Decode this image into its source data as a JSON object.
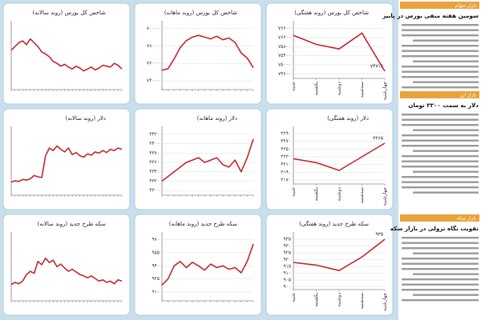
{
  "chart_data": [
    {
      "type": "line",
      "title": "شاخص کل بورس (روند سالانه)",
      "color": "#c0272d",
      "values": [
        62,
        66,
        70,
        72,
        68,
        74,
        70,
        66,
        60,
        58,
        55,
        50,
        48,
        45,
        47,
        44,
        42,
        45,
        43,
        40,
        42,
        44,
        41,
        43,
        46,
        45,
        44,
        48,
        46,
        42
      ],
      "ylim": [
        20,
        90
      ]
    },
    {
      "type": "line",
      "title": "شاخص کل بورس (روند ماهانه)",
      "color": "#c0272d",
      "values": [
        75200,
        75400,
        76500,
        77800,
        78600,
        79000,
        79200,
        79000,
        78800,
        79100,
        78700,
        78900,
        78400,
        77200,
        76600,
        75500
      ],
      "ylim": [
        73000,
        80500
      ],
      "yticks": [
        {
          "value": 74000,
          "label": "۷۴۰۰۰"
        },
        {
          "value": 76000,
          "label": "۷۶۰۰۰"
        },
        {
          "value": 78000,
          "label": "۷۸۰۰۰"
        },
        {
          "value": 80000,
          "label": "۸۰۰۰۰"
        }
      ]
    },
    {
      "type": "line",
      "title": "شاخص کل بورس (روند هفتگی)",
      "color": "#c0272d",
      "categories": [
        "شنبه",
        "یکشنبه",
        "دوشنبه",
        "سه‌شنبه",
        "چهارشنبه"
      ],
      "values": [
        76300,
        75900,
        75700,
        76400,
        74716
      ],
      "value_labels": [
        null,
        null,
        null,
        null,
        "۷۴۷۱۶"
      ],
      "ylim": [
        74400,
        76800
      ],
      "yticks": [
        {
          "value": 74600,
          "label": "۷۴۶۰۰"
        },
        {
          "value": 75000,
          "label": "۷۵۰۰۰"
        },
        {
          "value": 75400,
          "label": "۷۵۴۰۰"
        },
        {
          "value": 75800,
          "label": "۷۵۸۰۰"
        },
        {
          "value": 76200,
          "label": "۷۶۲۰۰"
        },
        {
          "value": 76600,
          "label": "۷۶۶۰۰"
        }
      ]
    },
    {
      "type": "line",
      "title": "دلار (روند سالانه)",
      "color": "#c0272d",
      "values": [
        20,
        22,
        21,
        24,
        23,
        25,
        30,
        28,
        27,
        60,
        72,
        68,
        75,
        70,
        66,
        72,
        62,
        65,
        60,
        58,
        63,
        61,
        66,
        64,
        68,
        65,
        70,
        68,
        72,
        70
      ],
      "ylim": [
        0,
        100
      ]
    },
    {
      "type": "line",
      "title": "دلار (روند ماهانه)",
      "color": "#c0272d",
      "values": [
        3320,
        3330,
        3340,
        3350,
        3360,
        3365,
        3370,
        3360,
        3365,
        3370,
        3355,
        3350,
        3365,
        3340,
        3370,
        3410
      ],
      "ylim": [
        3290,
        3430
      ],
      "yticks": [
        {
          "value": 3300,
          "label": "۳۳۰۰"
        },
        {
          "value": 3320,
          "label": "۳۳۲۰"
        },
        {
          "value": 3340,
          "label": "۳۳۴۰"
        },
        {
          "value": 3360,
          "label": "۳۳۶۰"
        },
        {
          "value": 3380,
          "label": "۳۳۸۰"
        },
        {
          "value": 3400,
          "label": "۳۴۰۰"
        },
        {
          "value": 3420,
          "label": "۳۴۲۰"
        }
      ]
    },
    {
      "type": "line",
      "title": "دلار (روند هفتگی)",
      "color": "#c0272d",
      "categories": [
        "شنبه",
        "یکشنبه",
        "دوشنبه",
        "سه‌شنبه",
        "چهارشنبه"
      ],
      "values": [
        3225,
        3215,
        3195,
        3230,
        3265
      ],
      "value_labels": [
        null,
        null,
        null,
        null,
        "۳۲۶۵"
      ],
      "ylim": [
        3160,
        3300
      ],
      "yticks": [
        {
          "value": 3170,
          "label": "۳۱۷۰"
        },
        {
          "value": 3190,
          "label": "۳۱۹۰"
        },
        {
          "value": 3210,
          "label": "۳۲۱۰"
        },
        {
          "value": 3230,
          "label": "۳۲۳۰"
        },
        {
          "value": 3250,
          "label": "۳۲۵۰"
        },
        {
          "value": 3270,
          "label": "۳۲۷۰"
        },
        {
          "value": 3290,
          "label": "۳۲۹۰"
        }
      ]
    },
    {
      "type": "line",
      "title": "سکه طرح جدید (روند سالانه)",
      "color": "#c0272d",
      "values": [
        25,
        28,
        26,
        30,
        40,
        45,
        42,
        60,
        55,
        65,
        58,
        62,
        52,
        56,
        50,
        45,
        48,
        44,
        40,
        38,
        35,
        38,
        34,
        30,
        32,
        28,
        30,
        26,
        32,
        30
      ],
      "ylim": [
        0,
        100
      ]
    },
    {
      "type": "line",
      "title": "سکه طرح جدید (روند ماهانه)",
      "color": "#c0272d",
      "values": [
        918,
        925,
        940,
        945,
        938,
        944,
        940,
        935,
        942,
        938,
        940,
        936,
        938,
        932,
        945,
        965
      ],
      "ylim": [
        900,
        975
      ],
      "yticks": [
        {
          "value": 910,
          "label": "۹۱۰"
        },
        {
          "value": 925,
          "label": "۹۲۵"
        },
        {
          "value": 940,
          "label": "۹۴۰"
        },
        {
          "value": 955,
          "label": "۹۵۵"
        },
        {
          "value": 970,
          "label": "۹۷۰"
        }
      ]
    },
    {
      "type": "line",
      "title": "سکه طرح جدید (روند هفتگی)",
      "color": "#c0272d",
      "categories": [
        "شنبه",
        "یکشنبه",
        "دوشنبه",
        "سه‌شنبه",
        "چهارشنبه"
      ],
      "values": [
        918,
        916,
        912,
        922,
        935
      ],
      "value_labels": [
        null,
        null,
        null,
        null,
        "۹۳۵"
      ],
      "ylim": [
        898,
        938
      ],
      "yticks": [
        {
          "value": 900,
          "label": "۹۰۰"
        },
        {
          "value": 905,
          "label": "۹۰۵"
        },
        {
          "value": 910,
          "label": "۹۱۰"
        },
        {
          "value": 915,
          "label": "۹۱۵"
        },
        {
          "value": 920,
          "label": "۹۲۰"
        },
        {
          "value": 925,
          "label": "۹۲۵"
        },
        {
          "value": 930,
          "label": "۹۳۰"
        },
        {
          "value": 935,
          "label": "۹۳۵"
        }
      ]
    }
  ],
  "sidebar": [
    {
      "header": "بازار سهام",
      "title": "سومین هفته منفی بورس در پاییز"
    },
    {
      "header": "بازار ارز",
      "title": "دلار به سمت ۳۳۰۰ تومان"
    },
    {
      "header": "بازار سکه",
      "title": "تقویت نگاه نزولی در بازار سکه"
    }
  ]
}
